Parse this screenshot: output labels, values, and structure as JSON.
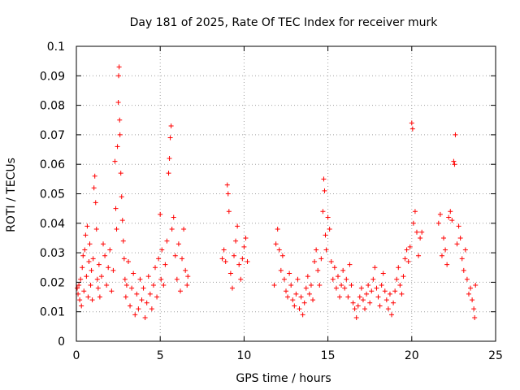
{
  "chart_data": {
    "type": "scatter",
    "title": "Day 181 of 2025, Rate Of TEC Index for receiver murk",
    "xlabel": "GPS time / hours",
    "ylabel": "ROTI / TECUs",
    "xlim": [
      0,
      25
    ],
    "ylim": [
      0,
      0.1
    ],
    "x_ticks": [
      "0",
      "5",
      "10",
      "15",
      "20",
      "25"
    ],
    "y_ticks": [
      "0",
      "0.01",
      "0.02",
      "0.03",
      "0.04",
      "0.05",
      "0.06",
      "0.07",
      "0.08",
      "0.09",
      "0.1"
    ],
    "grid": true,
    "marker": "+",
    "color": "#ff0000",
    "series": [
      {
        "points": [
          [
            0.05,
            0.018
          ],
          [
            0.1,
            0.016
          ],
          [
            0.15,
            0.019
          ],
          [
            0.2,
            0.014
          ],
          [
            0.25,
            0.021
          ],
          [
            0.3,
            0.012
          ],
          [
            0.35,
            0.025
          ],
          [
            0.4,
            0.029
          ],
          [
            0.45,
            0.017
          ],
          [
            0.5,
            0.031
          ],
          [
            0.55,
            0.036
          ],
          [
            0.6,
            0.022
          ],
          [
            0.65,
            0.039
          ],
          [
            0.7,
            0.015
          ],
          [
            0.75,
            0.027
          ],
          [
            0.8,
            0.033
          ],
          [
            0.85,
            0.019
          ],
          [
            0.9,
            0.024
          ],
          [
            0.95,
            0.014
          ],
          [
            1.0,
            0.028
          ],
          [
            1.05,
            0.052
          ],
          [
            1.1,
            0.056
          ],
          [
            1.15,
            0.047
          ],
          [
            1.2,
            0.038
          ],
          [
            1.25,
            0.021
          ],
          [
            1.3,
            0.018
          ],
          [
            1.35,
            0.026
          ],
          [
            1.4,
            0.015
          ],
          [
            1.5,
            0.022
          ],
          [
            1.6,
            0.033
          ],
          [
            1.7,
            0.029
          ],
          [
            1.8,
            0.019
          ],
          [
            1.9,
            0.025
          ],
          [
            2.0,
            0.031
          ],
          [
            2.1,
            0.017
          ],
          [
            2.2,
            0.024
          ],
          [
            2.3,
            0.061
          ],
          [
            2.35,
            0.045
          ],
          [
            2.4,
            0.038
          ],
          [
            2.45,
            0.066
          ],
          [
            2.5,
            0.081
          ],
          [
            2.52,
            0.09
          ],
          [
            2.55,
            0.093
          ],
          [
            2.58,
            0.075
          ],
          [
            2.6,
            0.07
          ],
          [
            2.65,
            0.057
          ],
          [
            2.7,
            0.049
          ],
          [
            2.75,
            0.041
          ],
          [
            2.8,
            0.034
          ],
          [
            2.85,
            0.028
          ],
          [
            2.9,
            0.021
          ],
          [
            2.95,
            0.015
          ],
          [
            3.0,
            0.019
          ],
          [
            3.1,
            0.027
          ],
          [
            3.2,
            0.012
          ],
          [
            3.3,
            0.018
          ],
          [
            3.4,
            0.023
          ],
          [
            3.5,
            0.009
          ],
          [
            3.6,
            0.016
          ],
          [
            3.7,
            0.011
          ],
          [
            3.8,
            0.021
          ],
          [
            3.9,
            0.014
          ],
          [
            4.0,
            0.018
          ],
          [
            4.1,
            0.008
          ],
          [
            4.2,
            0.013
          ],
          [
            4.3,
            0.022
          ],
          [
            4.4,
            0.016
          ],
          [
            4.5,
            0.011
          ],
          [
            4.6,
            0.019
          ],
          [
            4.7,
            0.025
          ],
          [
            4.8,
            0.015
          ],
          [
            4.9,
            0.028
          ],
          [
            5.0,
            0.043
          ],
          [
            5.05,
            0.021
          ],
          [
            5.1,
            0.031
          ],
          [
            5.2,
            0.019
          ],
          [
            5.3,
            0.026
          ],
          [
            5.4,
            0.034
          ],
          [
            5.5,
            0.057
          ],
          [
            5.55,
            0.062
          ],
          [
            5.6,
            0.069
          ],
          [
            5.65,
            0.073
          ],
          [
            5.7,
            0.038
          ],
          [
            5.8,
            0.042
          ],
          [
            5.9,
            0.029
          ],
          [
            6.0,
            0.021
          ],
          [
            6.1,
            0.033
          ],
          [
            6.2,
            0.017
          ],
          [
            6.3,
            0.028
          ],
          [
            6.4,
            0.038
          ],
          [
            6.5,
            0.024
          ],
          [
            6.6,
            0.019
          ],
          [
            6.65,
            0.022
          ],
          [
            8.7,
            0.028
          ],
          [
            8.8,
            0.031
          ],
          [
            8.9,
            0.027
          ],
          [
            9.0,
            0.053
          ],
          [
            9.05,
            0.05
          ],
          [
            9.1,
            0.044
          ],
          [
            9.2,
            0.023
          ],
          [
            9.3,
            0.018
          ],
          [
            9.4,
            0.029
          ],
          [
            9.5,
            0.034
          ],
          [
            9.6,
            0.039
          ],
          [
            9.7,
            0.026
          ],
          [
            9.8,
            0.021
          ],
          [
            9.9,
            0.028
          ],
          [
            10.0,
            0.032
          ],
          [
            10.1,
            0.035
          ],
          [
            10.2,
            0.027
          ],
          [
            11.8,
            0.019
          ],
          [
            11.9,
            0.033
          ],
          [
            12.0,
            0.038
          ],
          [
            12.1,
            0.031
          ],
          [
            12.2,
            0.024
          ],
          [
            12.3,
            0.029
          ],
          [
            12.4,
            0.021
          ],
          [
            12.5,
            0.017
          ],
          [
            12.6,
            0.015
          ],
          [
            12.7,
            0.023
          ],
          [
            12.8,
            0.019
          ],
          [
            12.9,
            0.014
          ],
          [
            13.0,
            0.012
          ],
          [
            13.1,
            0.016
          ],
          [
            13.2,
            0.021
          ],
          [
            13.3,
            0.011
          ],
          [
            13.4,
            0.015
          ],
          [
            13.5,
            0.009
          ],
          [
            13.6,
            0.013
          ],
          [
            13.7,
            0.018
          ],
          [
            13.8,
            0.022
          ],
          [
            13.9,
            0.016
          ],
          [
            14.0,
            0.019
          ],
          [
            14.1,
            0.014
          ],
          [
            14.2,
            0.027
          ],
          [
            14.3,
            0.031
          ],
          [
            14.4,
            0.024
          ],
          [
            14.5,
            0.019
          ],
          [
            14.6,
            0.028
          ],
          [
            14.7,
            0.044
          ],
          [
            14.75,
            0.055
          ],
          [
            14.8,
            0.051
          ],
          [
            14.85,
            0.036
          ],
          [
            14.9,
            0.031
          ],
          [
            15.0,
            0.042
          ],
          [
            15.1,
            0.038
          ],
          [
            15.2,
            0.027
          ],
          [
            15.3,
            0.021
          ],
          [
            15.4,
            0.025
          ],
          [
            15.5,
            0.018
          ],
          [
            15.6,
            0.022
          ],
          [
            15.7,
            0.015
          ],
          [
            15.8,
            0.019
          ],
          [
            15.9,
            0.024
          ],
          [
            16.0,
            0.018
          ],
          [
            16.1,
            0.021
          ],
          [
            16.2,
            0.015
          ],
          [
            16.3,
            0.026
          ],
          [
            16.4,
            0.019
          ],
          [
            16.5,
            0.013
          ],
          [
            16.6,
            0.011
          ],
          [
            16.7,
            0.008
          ],
          [
            16.8,
            0.012
          ],
          [
            16.9,
            0.015
          ],
          [
            17.0,
            0.018
          ],
          [
            17.1,
            0.014
          ],
          [
            17.2,
            0.011
          ],
          [
            17.3,
            0.016
          ],
          [
            17.4,
            0.019
          ],
          [
            17.5,
            0.013
          ],
          [
            17.6,
            0.017
          ],
          [
            17.7,
            0.021
          ],
          [
            17.8,
            0.025
          ],
          [
            17.9,
            0.018
          ],
          [
            18.0,
            0.015
          ],
          [
            18.1,
            0.012
          ],
          [
            18.2,
            0.019
          ],
          [
            18.3,
            0.023
          ],
          [
            18.4,
            0.017
          ],
          [
            18.5,
            0.014
          ],
          [
            18.6,
            0.011
          ],
          [
            18.7,
            0.016
          ],
          [
            18.8,
            0.009
          ],
          [
            18.9,
            0.013
          ],
          [
            19.0,
            0.017
          ],
          [
            19.1,
            0.021
          ],
          [
            19.2,
            0.025
          ],
          [
            19.3,
            0.019
          ],
          [
            19.4,
            0.016
          ],
          [
            19.5,
            0.022
          ],
          [
            19.6,
            0.028
          ],
          [
            19.7,
            0.031
          ],
          [
            19.8,
            0.027
          ],
          [
            19.9,
            0.032
          ],
          [
            20.0,
            0.074
          ],
          [
            20.05,
            0.072
          ],
          [
            20.1,
            0.04
          ],
          [
            20.2,
            0.044
          ],
          [
            20.3,
            0.037
          ],
          [
            20.4,
            0.029
          ],
          [
            20.5,
            0.035
          ],
          [
            20.6,
            0.037
          ],
          [
            21.6,
            0.04
          ],
          [
            21.7,
            0.043
          ],
          [
            21.8,
            0.029
          ],
          [
            21.9,
            0.035
          ],
          [
            22.0,
            0.031
          ],
          [
            22.1,
            0.026
          ],
          [
            22.2,
            0.042
          ],
          [
            22.3,
            0.044
          ],
          [
            22.4,
            0.041
          ],
          [
            22.5,
            0.061
          ],
          [
            22.55,
            0.06
          ],
          [
            22.6,
            0.07
          ],
          [
            22.7,
            0.033
          ],
          [
            22.8,
            0.039
          ],
          [
            22.9,
            0.035
          ],
          [
            23.0,
            0.028
          ],
          [
            23.1,
            0.024
          ],
          [
            23.2,
            0.031
          ],
          [
            23.3,
            0.021
          ],
          [
            23.4,
            0.016
          ],
          [
            23.5,
            0.018
          ],
          [
            23.6,
            0.014
          ],
          [
            23.7,
            0.011
          ],
          [
            23.75,
            0.008
          ],
          [
            23.8,
            0.019
          ]
        ]
      }
    ]
  }
}
